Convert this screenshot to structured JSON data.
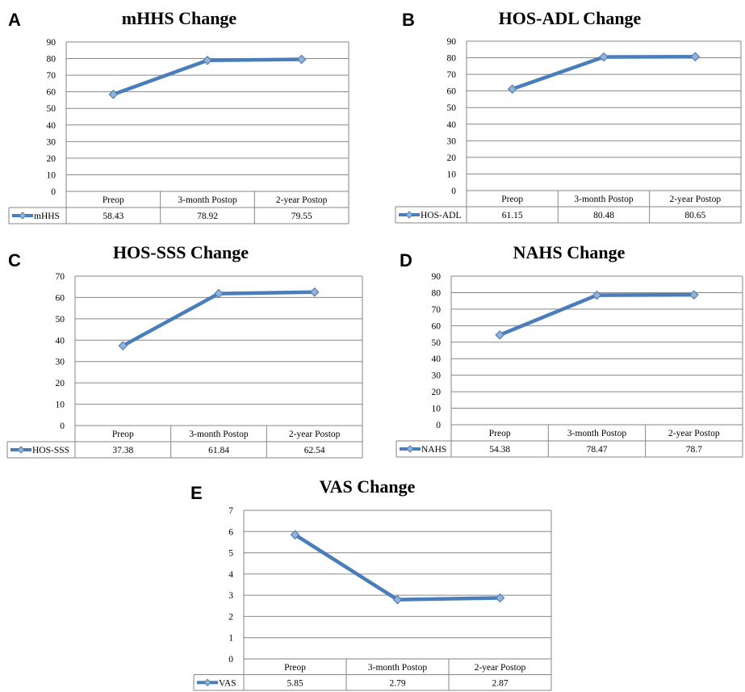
{
  "colors": {
    "series": "#4a7ebb",
    "marker": "#4f81bd",
    "marker_light": "#95b3d7",
    "grid": "#868686"
  },
  "chart_data": [
    {
      "panel": "A",
      "type": "line",
      "title": "mHHS Change",
      "categories": [
        "Preop",
        "3-month Postop",
        "2-year Postop"
      ],
      "series": [
        {
          "name": "mHHS",
          "values": [
            58.43,
            78.92,
            79.55
          ]
        }
      ],
      "value_labels": [
        "58.43",
        "78.92",
        "79.55"
      ],
      "ylim": [
        0,
        90
      ],
      "yticks": [
        0,
        10,
        20,
        30,
        40,
        50,
        60,
        70,
        80,
        90
      ],
      "grid": true,
      "legend": "data-table-left"
    },
    {
      "panel": "B",
      "type": "line",
      "title": "HOS-ADL Change",
      "categories": [
        "Preop",
        "3-month Postop",
        "2-year Postop"
      ],
      "series": [
        {
          "name": "HOS-ADL",
          "values": [
            61.15,
            80.48,
            80.65
          ]
        }
      ],
      "value_labels": [
        "61.15",
        "80.48",
        "80.65"
      ],
      "ylim": [
        0,
        90
      ],
      "yticks": [
        0,
        10,
        20,
        30,
        40,
        50,
        60,
        70,
        80,
        90
      ],
      "grid": true,
      "legend": "data-table-left"
    },
    {
      "panel": "C",
      "type": "line",
      "title": "HOS-SSS Change",
      "categories": [
        "Preop",
        "3-month Postop",
        "2-year Postop"
      ],
      "series": [
        {
          "name": "HOS-SSS",
          "values": [
            37.38,
            61.84,
            62.54
          ]
        }
      ],
      "value_labels": [
        "37.38",
        "61.84",
        "62.54"
      ],
      "ylim": [
        0,
        70
      ],
      "yticks": [
        0,
        10,
        20,
        30,
        40,
        50,
        60,
        70
      ],
      "grid": true,
      "legend": "data-table-left"
    },
    {
      "panel": "D",
      "type": "line",
      "title": "NAHS Change",
      "categories": [
        "Preop",
        "3-month Postop",
        "2-year Postop"
      ],
      "series": [
        {
          "name": "NAHS",
          "values": [
            54.38,
            78.47,
            78.7
          ]
        }
      ],
      "value_labels": [
        "54.38",
        "78.47",
        "78.7"
      ],
      "ylim": [
        0,
        90
      ],
      "yticks": [
        0,
        10,
        20,
        30,
        40,
        50,
        60,
        70,
        80,
        90
      ],
      "grid": true,
      "legend": "data-table-left"
    },
    {
      "panel": "E",
      "type": "line",
      "title": "VAS Change",
      "categories": [
        "Preop",
        "3-month Postop",
        "2-year Postop"
      ],
      "series": [
        {
          "name": "VAS",
          "values": [
            5.85,
            2.79,
            2.87
          ]
        }
      ],
      "value_labels": [
        "5.85",
        "2.79",
        "2.87"
      ],
      "ylim": [
        0,
        7
      ],
      "yticks": [
        0,
        1,
        2,
        3,
        4,
        5,
        6,
        7
      ],
      "grid": true,
      "legend": "data-table-left"
    }
  ]
}
